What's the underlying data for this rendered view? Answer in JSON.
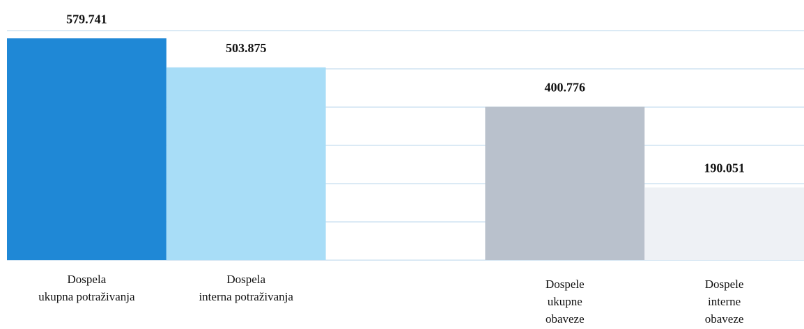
{
  "chart_data": {
    "type": "bar",
    "categories": [
      [
        "Dospela",
        "ukupna potraživanja"
      ],
      [
        "Dospela",
        "interna potraživanja"
      ],
      null,
      [
        "Dospele",
        "ukupne",
        "obaveze"
      ],
      [
        "Dospele",
        "interne",
        "obaveze"
      ]
    ],
    "values": [
      579741,
      503875,
      null,
      400776,
      190051
    ],
    "value_labels": [
      "579.741",
      "503.875",
      null,
      "400.776",
      "190.051"
    ],
    "colors": [
      "#1f88d6",
      "#a8ddf7",
      null,
      "#b9c1cc",
      "#eef1f5"
    ],
    "ylim": [
      0,
      600000
    ],
    "yticks": [
      0,
      100000,
      200000,
      300000,
      400000,
      500000,
      600000
    ],
    "grid": true
  }
}
